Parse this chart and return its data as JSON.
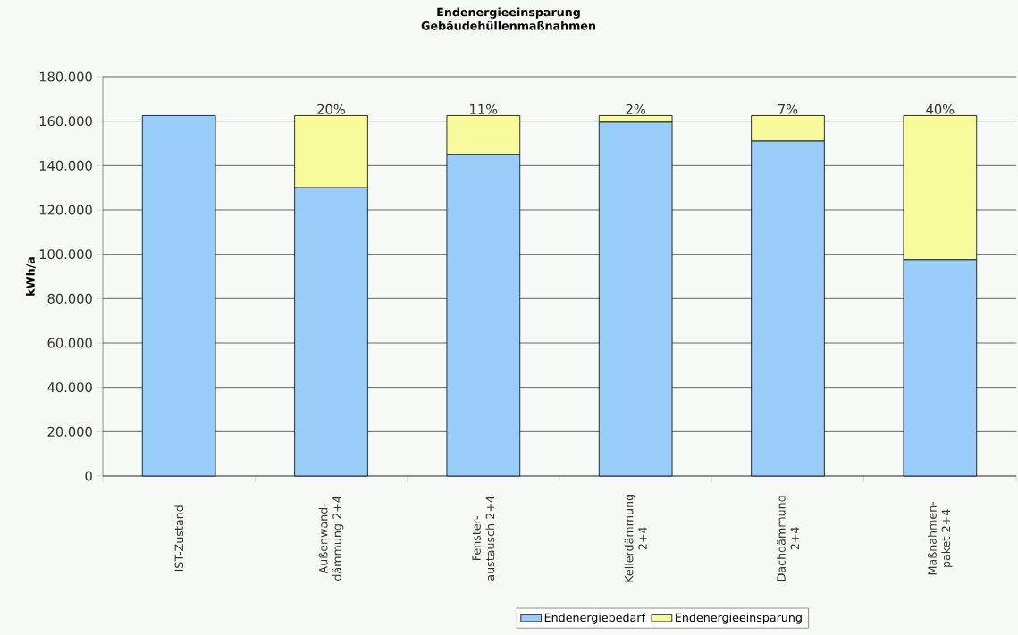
{
  "chart_data": {
    "type": "bar",
    "stacked": true,
    "title": "Endenergieeinsparung",
    "subtitle": "Gebäudehüllenmaßnahmen",
    "ylabel": "kWh/a",
    "categories": [
      "IST-Zustand",
      "Außenwand-dämmung 2+4",
      "Fenster-austausch 2+4",
      "Kellerdämmung 2+4",
      "Dachdämmung 2+4",
      "Maßnahmen-paket 2+4"
    ],
    "series": [
      {
        "name": "Endenergiebedarf",
        "color": "#99ccf9",
        "values": [
          162500,
          130000,
          145000,
          159500,
          151000,
          97500
        ]
      },
      {
        "name": "Endenergieeinsparung",
        "color": "#f7fb9b",
        "values": [
          0,
          32500,
          17500,
          3000,
          11500,
          65000
        ]
      }
    ],
    "annotations": [
      {
        "text": "20%",
        "x": "Außenwand-dämmung 2+4",
        "y": 162500
      },
      {
        "text": "11%",
        "x": "Fenster-austausch 2+4",
        "y": 162500
      },
      {
        "text": "2%",
        "x": "Kellerdämmung 2+4",
        "y": 162500
      },
      {
        "text": "7%",
        "x": "Dachdämmung 2+4",
        "y": 162500
      },
      {
        "text": "40%",
        "x": "Maßnahmen-paket 2+4",
        "y": 162500
      }
    ],
    "ylim": [
      0,
      180000
    ],
    "yticks": [
      0,
      {
        "value": 20000,
        "label": "20.000"
      },
      {
        "value": 40000,
        "label": "40.000"
      },
      {
        "value": 60000,
        "label": "60.000"
      },
      {
        "value": 80000,
        "label": "80.000"
      },
      {
        "value": 100000,
        "label": "100.000"
      },
      {
        "value": 120000,
        "label": "120.000"
      },
      {
        "value": 140000,
        "label": "140.000"
      },
      {
        "value": 160000,
        "label": "160.000"
      },
      {
        "value": 180000,
        "label": "180.000"
      }
    ],
    "grid": "y",
    "legend": "bottom"
  }
}
